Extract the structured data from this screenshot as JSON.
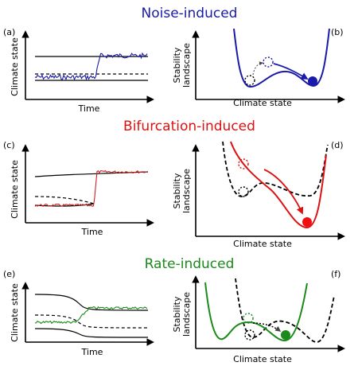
{
  "rows": [
    {
      "title": "Noise-induced",
      "color": "#1a1aaa",
      "left_letter": "(a)",
      "right_letter": "(b)"
    },
    {
      "title": "Bifurcation-induced",
      "color": "#dd1111",
      "left_letter": "(c)",
      "right_letter": "(d)"
    },
    {
      "title": "Rate-induced",
      "color": "#1a8a1a",
      "left_letter": "(e)",
      "right_letter": "(f)"
    }
  ],
  "labels": {
    "climate_state": "Climate state",
    "time": "Time",
    "stability_line1": "Stability",
    "stability_line2": "landscape"
  }
}
